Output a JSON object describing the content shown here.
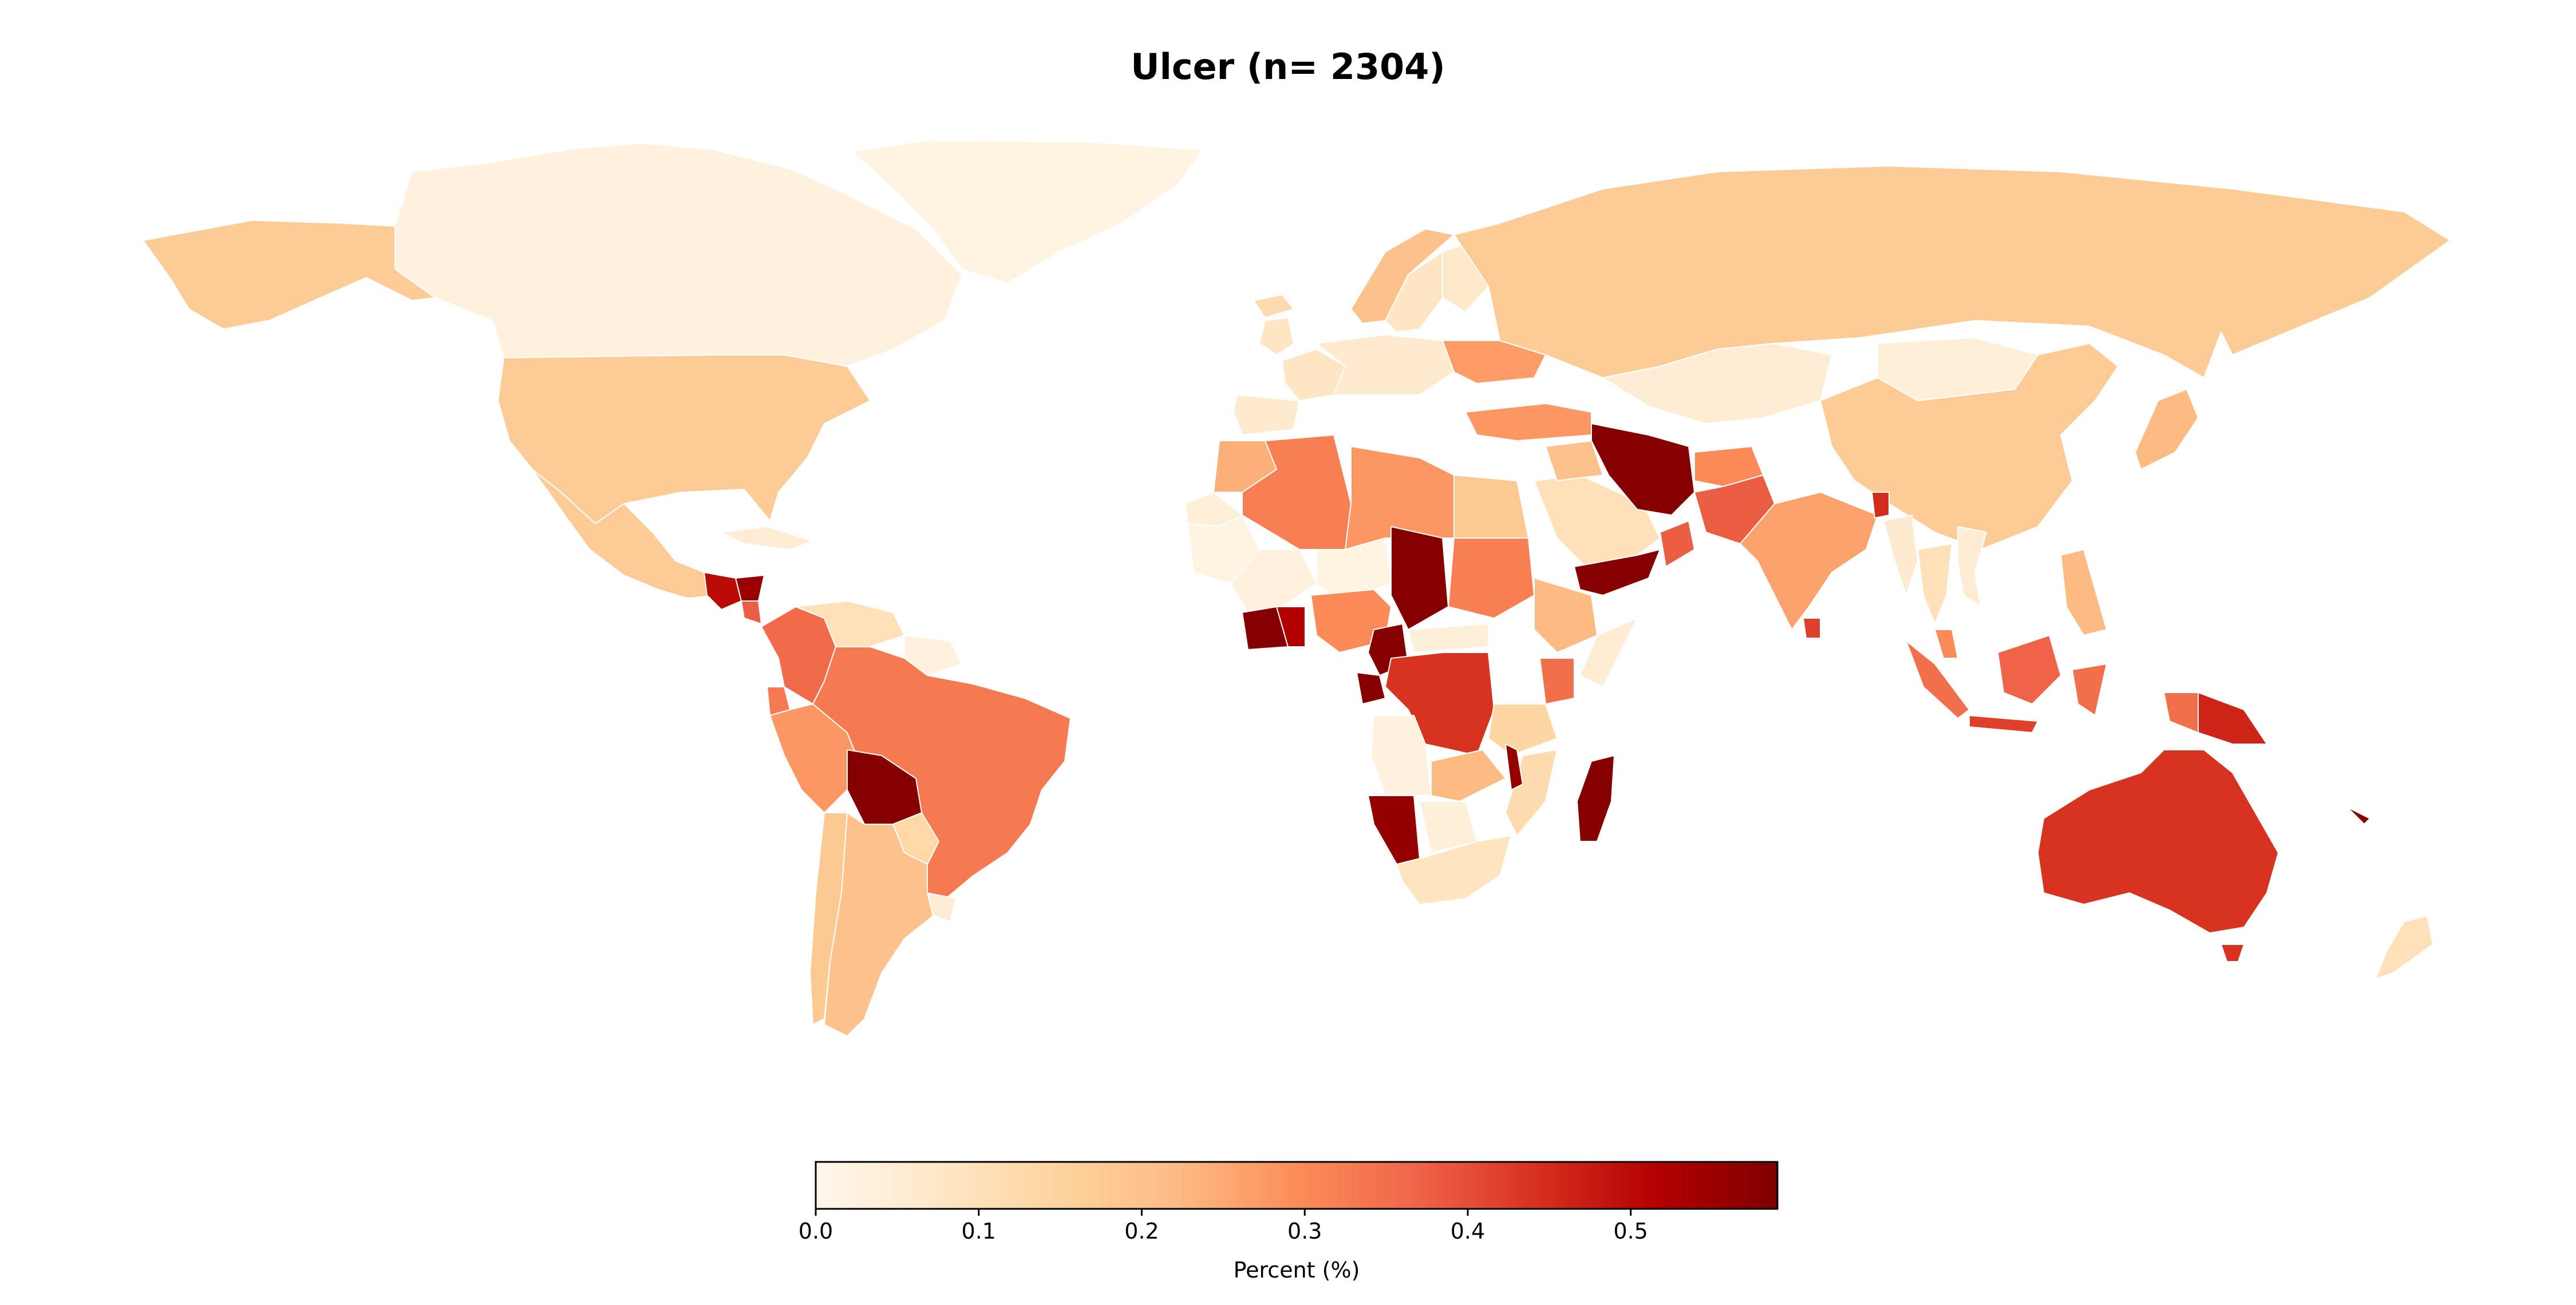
{
  "chart_data": {
    "type": "choropleth",
    "title": "Ulcer (n= 2304)",
    "colormap": "OrRd",
    "colorbar": {
      "label": "Percent (%)",
      "range": [
        0.0,
        0.59
      ],
      "ticks": [
        0.0,
        0.1,
        0.2,
        0.3,
        0.4,
        0.5
      ],
      "tick_labels": [
        "0.0",
        "0.1",
        "0.2",
        "0.3",
        "0.4",
        "0.5"
      ],
      "placement": "bottom-center",
      "stops": [
        "#fff7ec",
        "#fee8c8",
        "#fdd49e",
        "#fdbb84",
        "#fc8d59",
        "#ef6548",
        "#d7301f",
        "#b30000",
        "#7f0000"
      ]
    },
    "regions": [
      {
        "name": "Canada",
        "value": 0.03
      },
      {
        "name": "Greenland",
        "value": 0.02
      },
      {
        "name": "United States",
        "value": 0.17
      },
      {
        "name": "Alaska",
        "value": 0.17
      },
      {
        "name": "Mexico",
        "value": 0.17
      },
      {
        "name": "Guatemala",
        "value": 0.5
      },
      {
        "name": "Honduras",
        "value": 0.55
      },
      {
        "name": "Nicaragua",
        "value": 0.38
      },
      {
        "name": "Cuba",
        "value": 0.05
      },
      {
        "name": "Colombia",
        "value": 0.36
      },
      {
        "name": "Venezuela",
        "value": 0.1
      },
      {
        "name": "Guyana",
        "value": 0.03
      },
      {
        "name": "Ecuador",
        "value": 0.33
      },
      {
        "name": "Peru",
        "value": 0.28
      },
      {
        "name": "Brazil",
        "value": 0.33
      },
      {
        "name": "Bolivia",
        "value": 0.58
      },
      {
        "name": "Paraguay",
        "value": 0.13
      },
      {
        "name": "Uruguay",
        "value": 0.05
      },
      {
        "name": "Chile",
        "value": 0.18
      },
      {
        "name": "Argentina",
        "value": 0.2
      },
      {
        "name": "Iceland",
        "value": 0.12
      },
      {
        "name": "United Kingdom",
        "value": 0.08
      },
      {
        "name": "Norway",
        "value": 0.2
      },
      {
        "name": "Sweden",
        "value": 0.08
      },
      {
        "name": "Finland",
        "value": 0.07
      },
      {
        "name": "France",
        "value": 0.08
      },
      {
        "name": "Spain",
        "value": 0.06
      },
      {
        "name": "Central Europe",
        "value": 0.06
      },
      {
        "name": "Ukraine",
        "value": 0.27
      },
      {
        "name": "Russia",
        "value": 0.17
      },
      {
        "name": "Turkey",
        "value": 0.28
      },
      {
        "name": "Kazakhstan",
        "value": 0.05
      },
      {
        "name": "Mongolia",
        "value": 0.04
      },
      {
        "name": "China",
        "value": 0.17
      },
      {
        "name": "Japan",
        "value": 0.22
      },
      {
        "name": "Morocco",
        "value": 0.24
      },
      {
        "name": "Algeria",
        "value": 0.32
      },
      {
        "name": "Libya",
        "value": 0.28
      },
      {
        "name": "Egypt",
        "value": 0.18
      },
      {
        "name": "Western Sahara",
        "value": 0.04
      },
      {
        "name": "Mauritania",
        "value": 0.02
      },
      {
        "name": "Mali",
        "value": 0.03
      },
      {
        "name": "Niger",
        "value": 0.02
      },
      {
        "name": "Chad",
        "value": 0.58
      },
      {
        "name": "Sudan",
        "value": 0.32
      },
      {
        "name": "Ethiopia",
        "value": 0.22
      },
      {
        "name": "Somalia",
        "value": 0.05
      },
      {
        "name": "Cote d'Ivoire",
        "value": 0.58
      },
      {
        "name": "Ghana",
        "value": 0.52
      },
      {
        "name": "Nigeria",
        "value": 0.3
      },
      {
        "name": "Cameroon",
        "value": 0.58
      },
      {
        "name": "Central African Republic",
        "value": 0.04
      },
      {
        "name": "DR Congo",
        "value": 0.44
      },
      {
        "name": "Gabon",
        "value": 0.58
      },
      {
        "name": "Kenya",
        "value": 0.35
      },
      {
        "name": "Tanzania",
        "value": 0.14
      },
      {
        "name": "Angola",
        "value": 0.03
      },
      {
        "name": "Zambia",
        "value": 0.22
      },
      {
        "name": "Mozambique",
        "value": 0.12
      },
      {
        "name": "Malawi",
        "value": 0.56
      },
      {
        "name": "Namibia",
        "value": 0.56
      },
      {
        "name": "Botswana",
        "value": 0.04
      },
      {
        "name": "South Africa",
        "value": 0.09
      },
      {
        "name": "Madagascar",
        "value": 0.58
      },
      {
        "name": "Saudi Arabia",
        "value": 0.1
      },
      {
        "name": "Yemen",
        "value": 0.58
      },
      {
        "name": "Oman",
        "value": 0.38
      },
      {
        "name": "Iraq",
        "value": 0.2
      },
      {
        "name": "Iran",
        "value": 0.58
      },
      {
        "name": "Afghanistan",
        "value": 0.3
      },
      {
        "name": "Pakistan",
        "value": 0.38
      },
      {
        "name": "India",
        "value": 0.26
      },
      {
        "name": "Bangladesh",
        "value": 0.45
      },
      {
        "name": "Myanmar",
        "value": 0.06
      },
      {
        "name": "Thailand",
        "value": 0.1
      },
      {
        "name": "Vietnam",
        "value": 0.05
      },
      {
        "name": "Philippines",
        "value": 0.22
      },
      {
        "name": "Sri Lanka",
        "value": 0.42
      },
      {
        "name": "Malaysia",
        "value": 0.3
      },
      {
        "name": "Sumatra",
        "value": 0.35
      },
      {
        "name": "Java",
        "value": 0.42
      },
      {
        "name": "Borneo",
        "value": 0.37
      },
      {
        "name": "Sulawesi",
        "value": 0.35
      },
      {
        "name": "Papua New Guinea",
        "value": 0.46
      },
      {
        "name": "New Guinea West",
        "value": 0.35
      },
      {
        "name": "Australia",
        "value": 0.44
      },
      {
        "name": "Tasmania",
        "value": 0.44
      },
      {
        "name": "New Zealand",
        "value": 0.1
      },
      {
        "name": "New Caledonia",
        "value": 0.58
      }
    ]
  }
}
